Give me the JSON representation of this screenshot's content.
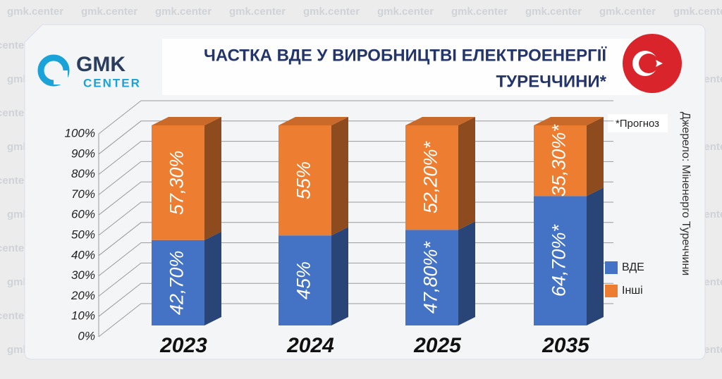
{
  "chart_data": {
    "type": "stacked-bar",
    "title": [
      "ЧАСТКА ВДЕ У ВИРОБНИЦТВІ ЕЛЕКТРОЕНЕРГІЇ",
      "ТУРЕЧЧИНИ*"
    ],
    "logo": [
      "GMK",
      "CENTER"
    ],
    "watermark": "gmk.center",
    "note": "*Прогноз",
    "source": "Джерело: Міненерго Туреччини",
    "categories": [
      "2023",
      "2024",
      "2025",
      "2035"
    ],
    "series": [
      {
        "name": "ВДЕ",
        "color": "#4472c4",
        "values": [
          42.7,
          45,
          47.8,
          64.7
        ],
        "value_labels": [
          "42,70%",
          "45%",
          "47,80%*",
          "64,70%*"
        ]
      },
      {
        "name": "Інші",
        "color": "#ed7d31",
        "values": [
          57.3,
          55,
          52.2,
          35.3
        ],
        "value_labels": [
          "57,30%",
          "55%",
          "52,20%*",
          "35,30%*"
        ]
      }
    ],
    "ylim": [
      0,
      100
    ],
    "yticks": [
      {
        "value": 0,
        "label": "0%"
      },
      {
        "value": 10,
        "label": "10%"
      },
      {
        "value": 20,
        "label": "20%"
      },
      {
        "value": 30,
        "label": "30%"
      },
      {
        "value": 40,
        "label": "40%"
      },
      {
        "value": 50,
        "label": "50%"
      },
      {
        "value": 60,
        "label": "60%"
      },
      {
        "value": 70,
        "label": "70%"
      },
      {
        "value": 80,
        "label": "80%"
      },
      {
        "value": 90,
        "label": "90%"
      },
      {
        "value": 100,
        "label": "100%"
      }
    ],
    "grid": true,
    "legend": "bottom-right"
  }
}
